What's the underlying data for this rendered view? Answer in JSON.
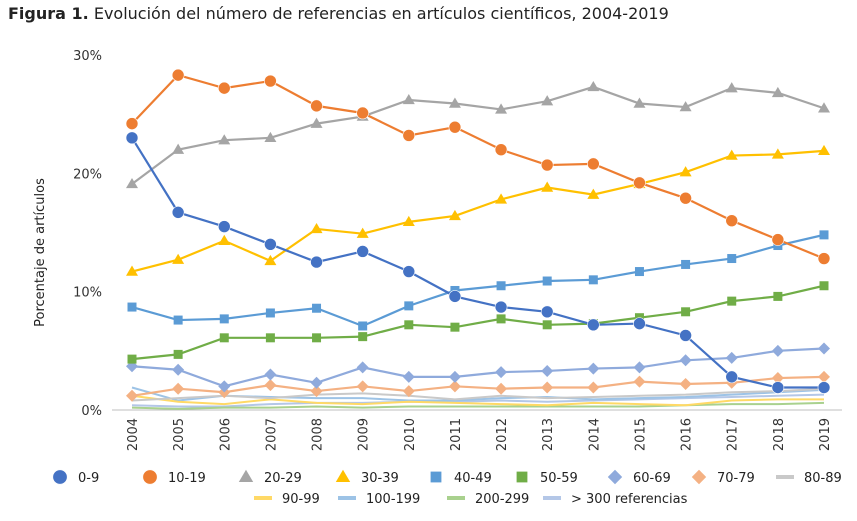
{
  "title": {
    "prefix": "Figura 1.",
    "text": "Evolución del número de referencias en artículos científicos, 2004-2019"
  },
  "chart_data": {
    "type": "line",
    "ylabel": "Porcentaje de artículos",
    "xlabel": "",
    "ylim": [
      0,
      30
    ],
    "yticks": [
      0,
      10,
      20,
      30
    ],
    "ytick_labels": [
      "0%",
      "10%",
      "20%",
      "30%"
    ],
    "grid": false,
    "legend_position": "bottom",
    "categories": [
      "2004",
      "2005",
      "2006",
      "2007",
      "2008",
      "2009",
      "2010",
      "2011",
      "2012",
      "2013",
      "2014",
      "2015",
      "2016",
      "2017",
      "2018",
      "2019"
    ],
    "series": [
      {
        "name": "0-9",
        "color": "#4472C4",
        "marker": "circle",
        "values": [
          23.0,
          16.7,
          15.5,
          14.0,
          12.5,
          13.4,
          11.7,
          9.6,
          8.7,
          8.3,
          7.2,
          7.3,
          6.3,
          2.8,
          1.9,
          1.9
        ]
      },
      {
        "name": "10-19",
        "color": "#ED7D31",
        "marker": "circle",
        "values": [
          24.2,
          28.3,
          27.2,
          27.8,
          25.7,
          25.1,
          23.2,
          23.9,
          22.0,
          20.7,
          20.8,
          19.2,
          17.9,
          16.0,
          14.4,
          12.8
        ]
      },
      {
        "name": "20-29",
        "color": "#A5A5A5",
        "marker": "triangle",
        "values": [
          19.1,
          22.0,
          22.8,
          23.0,
          24.2,
          24.8,
          26.2,
          25.9,
          25.4,
          26.1,
          27.3,
          25.9,
          25.6,
          27.2,
          26.8,
          25.5
        ]
      },
      {
        "name": "30-39",
        "color": "#FFC000",
        "marker": "triangle",
        "values": [
          11.7,
          12.7,
          14.3,
          12.6,
          15.3,
          14.9,
          15.9,
          16.4,
          17.8,
          18.8,
          18.2,
          19.1,
          20.1,
          21.5,
          21.6,
          21.9
        ]
      },
      {
        "name": "40-49",
        "color": "#5B9BD5",
        "marker": "square",
        "values": [
          8.7,
          7.6,
          7.7,
          8.2,
          8.6,
          7.1,
          8.8,
          10.1,
          10.5,
          10.9,
          11.0,
          11.7,
          12.3,
          12.8,
          13.9,
          14.8
        ]
      },
      {
        "name": "50-59",
        "color": "#70AD47",
        "marker": "square",
        "values": [
          4.3,
          4.7,
          6.1,
          6.1,
          6.1,
          6.2,
          7.2,
          7.0,
          7.7,
          7.2,
          7.3,
          7.8,
          8.3,
          9.2,
          9.6,
          10.5
        ]
      },
      {
        "name": "60-69",
        "color": "#8FAADC",
        "marker": "diamond",
        "values": [
          3.7,
          3.4,
          2.0,
          3.0,
          2.3,
          3.6,
          2.8,
          2.8,
          3.2,
          3.3,
          3.5,
          3.6,
          4.2,
          4.4,
          5.0,
          5.2
        ]
      },
      {
        "name": "70-79",
        "color": "#F4B183",
        "marker": "diamond",
        "values": [
          1.2,
          1.8,
          1.5,
          2.1,
          1.6,
          2.0,
          1.6,
          2.0,
          1.8,
          1.9,
          1.9,
          2.4,
          2.2,
          2.3,
          2.7,
          2.8
        ]
      },
      {
        "name": "80-89",
        "color": "#C9C9C9",
        "marker": "dash",
        "values": [
          0.8,
          1.0,
          1.2,
          1.0,
          1.3,
          1.4,
          1.2,
          0.9,
          1.2,
          1.0,
          1.1,
          1.2,
          1.3,
          1.5,
          1.6,
          1.8
        ]
      },
      {
        "name": "90-99",
        "color": "#FFD966",
        "marker": "dash",
        "values": [
          1.2,
          0.7,
          0.5,
          0.9,
          0.6,
          0.5,
          0.7,
          0.6,
          0.5,
          0.4,
          0.6,
          0.5,
          0.4,
          0.8,
          0.9,
          0.9
        ]
      },
      {
        "name": "100-199",
        "color": "#9DC3E6",
        "marker": "dash",
        "values": [
          1.9,
          0.8,
          1.2,
          1.1,
          1.0,
          1.0,
          0.8,
          0.8,
          1.0,
          1.1,
          0.9,
          1.0,
          1.1,
          1.3,
          1.5,
          1.7
        ]
      },
      {
        "name": "200-299",
        "color": "#A9D18E",
        "marker": "dash",
        "values": [
          0.2,
          0.1,
          0.2,
          0.2,
          0.3,
          0.2,
          0.3,
          0.3,
          0.3,
          0.3,
          0.3,
          0.3,
          0.4,
          0.5,
          0.5,
          0.6
        ]
      },
      {
        "name": "> 300 referencias",
        "color": "#B4C7E7",
        "marker": "dash",
        "values": [
          0.4,
          0.3,
          0.3,
          0.5,
          0.6,
          0.6,
          0.7,
          0.7,
          0.8,
          0.7,
          0.8,
          0.9,
          1.0,
          1.1,
          1.2,
          1.3
        ]
      }
    ]
  }
}
